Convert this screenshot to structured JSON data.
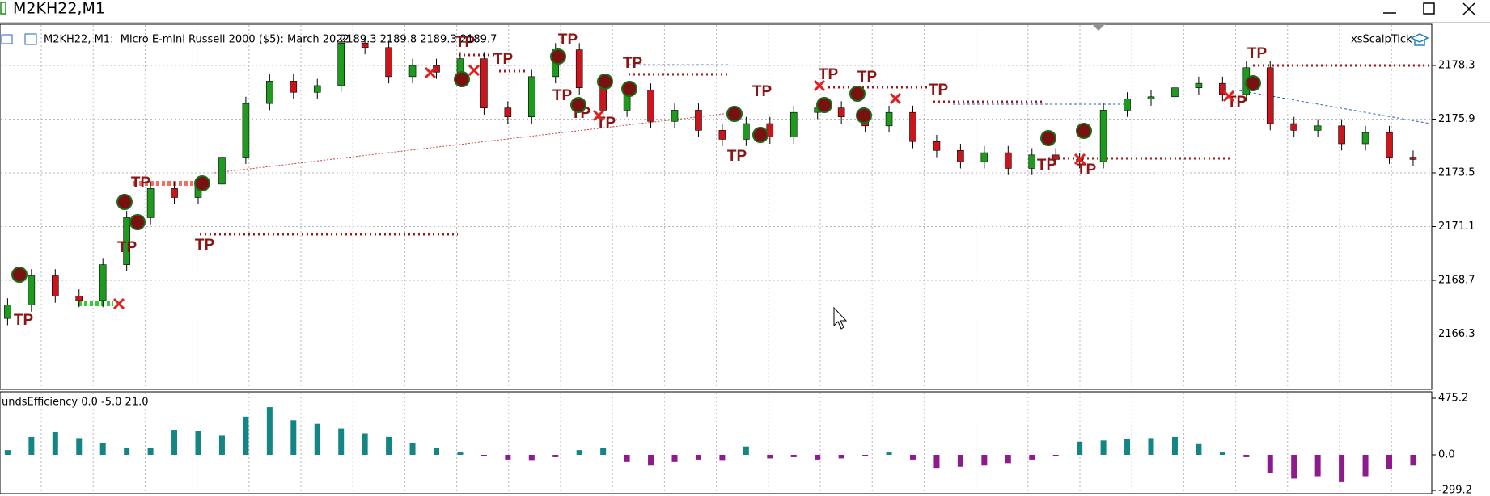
{
  "window": {
    "title": "M2KH22,M1"
  },
  "chart_data": [
    {
      "type": "candlestick",
      "title": "M2KH22, M1:  Micro E-mini Russell 2000 ($5): March 2022",
      "subtitle": "2189.3 2189.8 2189.3 2189.7",
      "expert": "xsScalpTick",
      "annotations": [
        "TP",
        "TP",
        "TP",
        "TP",
        "TP",
        "TP",
        "TP",
        "TP",
        "TP",
        "TP",
        "TP",
        "TP",
        "TP",
        "TP",
        "TP",
        "TP",
        "TP",
        "TP",
        "TP",
        "TP"
      ],
      "up_color": "#1e9b1e",
      "down_color": "#c8161c",
      "grid": true,
      "ylim": [
        2163.83,
        2180.14
      ],
      "yticks": [
        2166.3,
        2168.7,
        2171.1,
        2173.5,
        2175.9,
        2178.3
      ],
      "open": [
        2167.0,
        2167.6,
        2168.9,
        2168.0,
        2167.8,
        2169.4,
        2171.5,
        2172.8,
        2172.4,
        2173.0,
        2174.2,
        2176.6,
        2177.6,
        2177.1,
        2177.4,
        2179.3,
        2179.1,
        2177.8,
        2178.3,
        2178.0,
        2178.6,
        2176.4,
        2176.0,
        2177.8,
        2179.0,
        2177.3,
        2176.3,
        2177.2,
        2175.8,
        2176.3,
        2175.4,
        2175.0,
        2175.7,
        2175.1,
        2176.2,
        2176.4,
        2176.0,
        2175.6,
        2176.2,
        2174.9,
        2174.5,
        2174.0,
        2174.4,
        2173.7,
        2174.3,
        2174.1,
        2174.0,
        2176.3,
        2176.8,
        2176.9,
        2177.3,
        2177.5,
        2177.0,
        2178.2,
        2175.7,
        2175.4,
        2175.6,
        2174.8,
        2175.3,
        2174.2
      ],
      "high": [
        2167.9,
        2169.2,
        2169.2,
        2168.3,
        2169.7,
        2171.8,
        2173.1,
        2173.1,
        2173.3,
        2174.5,
        2176.9,
        2177.9,
        2177.9,
        2177.7,
        2179.6,
        2179.6,
        2179.4,
        2178.6,
        2178.6,
        2178.9,
        2178.9,
        2176.7,
        2178.1,
        2179.3,
        2179.3,
        2177.6,
        2177.5,
        2177.5,
        2176.6,
        2176.6,
        2175.7,
        2176.0,
        2176.0,
        2176.5,
        2176.7,
        2176.7,
        2176.3,
        2176.5,
        2176.5,
        2175.2,
        2174.8,
        2174.7,
        2174.7,
        2174.6,
        2174.6,
        2174.4,
        2176.6,
        2177.1,
        2177.2,
        2177.6,
        2177.8,
        2177.8,
        2178.5,
        2178.5,
        2176.0,
        2175.9,
        2175.9,
        2175.6,
        2175.6,
        2174.5
      ],
      "low": [
        2166.7,
        2167.3,
        2167.7,
        2167.5,
        2167.5,
        2169.1,
        2171.2,
        2172.1,
        2172.1,
        2172.7,
        2173.9,
        2176.3,
        2176.8,
        2176.8,
        2177.1,
        2178.8,
        2177.5,
        2177.5,
        2177.7,
        2177.7,
        2176.1,
        2175.7,
        2175.7,
        2177.5,
        2177.0,
        2176.0,
        2176.0,
        2175.5,
        2175.5,
        2175.1,
        2174.7,
        2174.7,
        2174.8,
        2174.8,
        2175.9,
        2175.7,
        2175.3,
        2175.3,
        2174.6,
        2174.2,
        2173.7,
        2173.7,
        2173.4,
        2173.4,
        2173.8,
        2173.7,
        2173.7,
        2176.0,
        2176.5,
        2176.6,
        2177.0,
        2176.7,
        2176.7,
        2175.4,
        2175.1,
        2175.1,
        2174.5,
        2174.5,
        2173.9,
        2173.8
      ],
      "close": [
        2167.6,
        2168.9,
        2168.0,
        2167.8,
        2169.4,
        2171.5,
        2172.8,
        2172.4,
        2173.0,
        2174.2,
        2176.6,
        2177.6,
        2177.1,
        2177.4,
        2179.3,
        2179.1,
        2177.8,
        2178.3,
        2178.0,
        2178.6,
        2176.4,
        2176.0,
        2177.8,
        2179.0,
        2177.3,
        2176.3,
        2177.2,
        2175.8,
        2176.3,
        2175.4,
        2175.0,
        2175.7,
        2175.1,
        2176.2,
        2176.4,
        2176.0,
        2175.6,
        2176.2,
        2174.9,
        2174.5,
        2174.0,
        2174.4,
        2173.7,
        2174.3,
        2174.1,
        2174.0,
        2176.3,
        2176.8,
        2176.9,
        2177.3,
        2177.5,
        2177.0,
        2178.2,
        2175.7,
        2175.4,
        2175.6,
        2174.8,
        2175.3,
        2174.2,
        2174.1
      ]
    },
    {
      "type": "bar",
      "title": "undsEfficiency 0.0 -5.0 21.0",
      "pos_color": "#138585",
      "neg_color": "#8e1a8c",
      "ylim": [
        -325.8,
        522.7
      ],
      "yticks": [
        475.2,
        {
          "value": 0,
          "label": "0.0"
        },
        -299.2
      ],
      "values": [
        40,
        150,
        190,
        140,
        100,
        60,
        60,
        210,
        200,
        160,
        320,
        400,
        290,
        260,
        220,
        180,
        150,
        100,
        60,
        20,
        -10,
        -40,
        -50,
        -20,
        40,
        60,
        -60,
        -90,
        -60,
        -40,
        -50,
        70,
        -30,
        -20,
        -40,
        -30,
        -10,
        20,
        -40,
        -110,
        -100,
        -90,
        -70,
        -40,
        -10,
        110,
        120,
        130,
        140,
        150,
        90,
        20,
        -20,
        -150,
        -200,
        -180,
        -230,
        -180,
        -120,
        -90
      ]
    }
  ]
}
